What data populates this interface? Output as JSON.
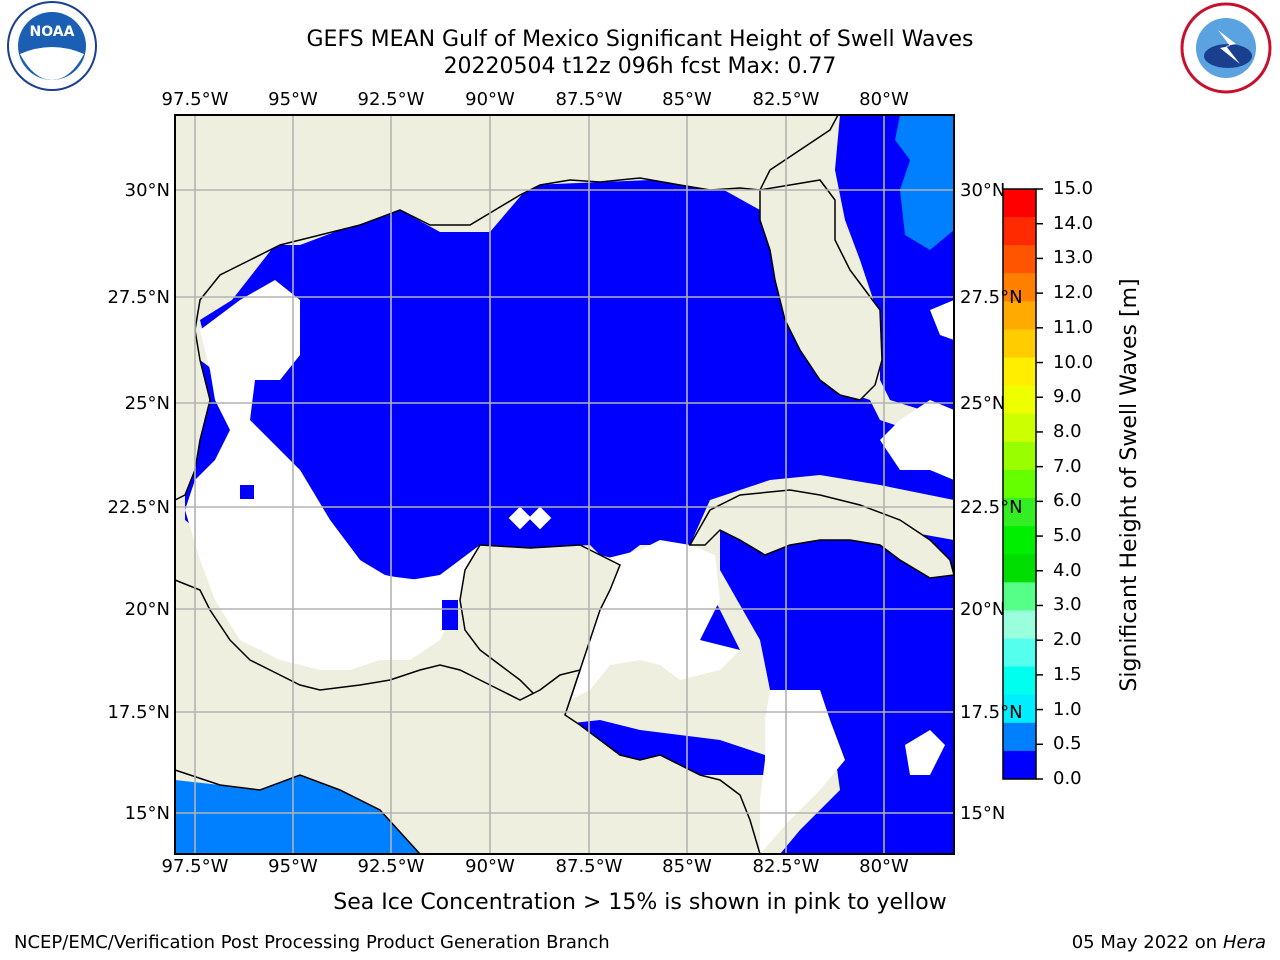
{
  "title": {
    "line1": "GEFS MEAN Gulf of Mexico Significant Height of Swell Waves",
    "line2": "20220504 t12z 096h fcst   Max: 0.77"
  },
  "map": {
    "lon_labels": [
      "97.5°W",
      "95°W",
      "92.5°W",
      "90°W",
      "87.5°W",
      "85°W",
      "82.5°W",
      "80°W"
    ],
    "lat_labels": [
      "30°N",
      "27.5°N",
      "25°N",
      "22.5°N",
      "20°N",
      "17.5°N",
      "15°N"
    ],
    "colors": {
      "land": "#efefdf",
      "ocean_low": "#0000ff",
      "ocean_mid": "#0080ff",
      "grid": "#b3b3b3"
    }
  },
  "colorbar": {
    "ticks": [
      "15.0",
      "14.0",
      "13.0",
      "12.0",
      "11.0",
      "10.0",
      "9.0",
      "8.0",
      "7.0",
      "6.0",
      "5.0",
      "4.0",
      "3.0",
      "2.0",
      "1.5",
      "1.0",
      "0.5",
      "0.0"
    ],
    "colors": [
      "#ff0000",
      "#ff2a00",
      "#ff5500",
      "#ff8000",
      "#ffaa00",
      "#ffcc00",
      "#ffee00",
      "#eeff00",
      "#ccff00",
      "#99ff00",
      "#66ff00",
      "#33ee22",
      "#00ee00",
      "#00dd00",
      "#55ff88",
      "#99ffdd",
      "#55ffee",
      "#00ffee",
      "#00eeff",
      "#0080ff",
      "#0000ff"
    ],
    "label": "Significant Height of Swell Waves [m]"
  },
  "footer": {
    "note": "Sea Ice Concentration > 15% is shown in pink to yellow",
    "left": "NCEP/EMC/Verification Post Processing Product Generation Branch",
    "date": "05 May 2022 on",
    "host": "Hera"
  },
  "logos": {
    "left": "NOAA",
    "right": "NATIONAL WEATHER SERVICE"
  }
}
